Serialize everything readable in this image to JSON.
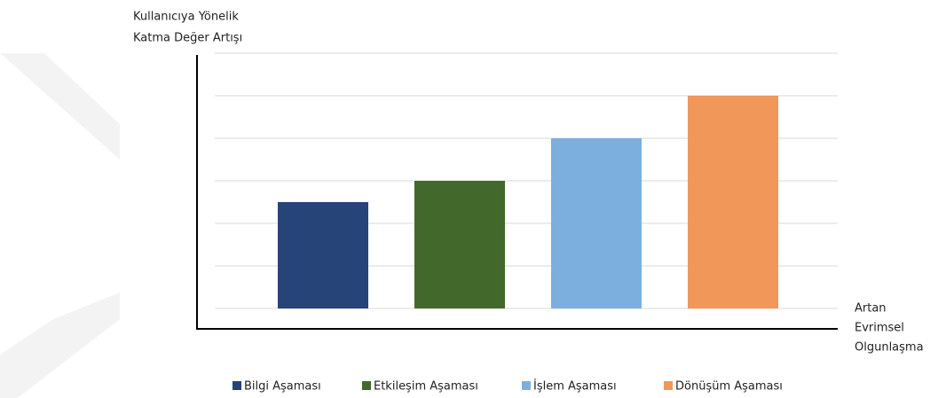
{
  "chart_data": {
    "type": "bar",
    "ylabel": [
      "Kullanıcıya Yönelik",
      "Katma Değer Artışı"
    ],
    "xlabel": [
      "Artan",
      "Evrimsel",
      "Olgunlaşma"
    ],
    "categories": [
      "Bilgi Aşaması",
      "Etkileşim Aşaması",
      "İşlem Aşaması",
      "Dönüşüm Aşaması"
    ],
    "values": [
      2.5,
      3,
      4,
      5
    ],
    "colors": [
      "#264478",
      "#43682b",
      "#7cafdd",
      "#f1975a"
    ],
    "ylim": [
      0,
      6
    ],
    "yticks": [
      0,
      1,
      2,
      3,
      4,
      5,
      6
    ],
    "grid": true,
    "legend": "bottom"
  }
}
